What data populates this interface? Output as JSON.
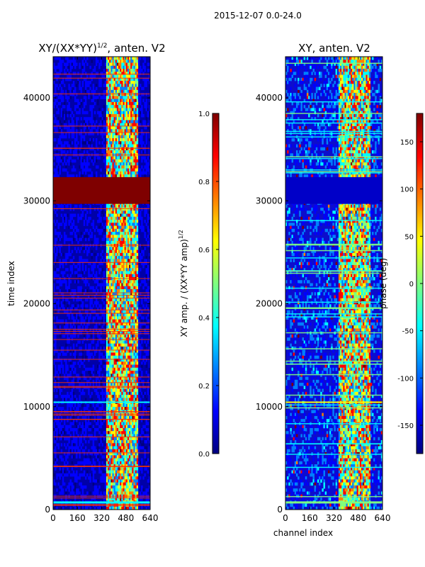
{
  "suptitle": "2015-12-07 0.0-24.0",
  "colors": {
    "jet": [
      "#00007f",
      "#0000ff",
      "#007fff",
      "#00ffff",
      "#7fff7f",
      "#ffff00",
      "#ff7f00",
      "#ff0000",
      "#7f0000"
    ],
    "axis": "#000000"
  },
  "chart_data": [
    {
      "type": "heatmap",
      "title_main": "XY/(XX*YY)",
      "title_sup": "1/2",
      "title_tail": ", anten. V2",
      "xlabel": "",
      "ylabel": "time index",
      "xlim": [
        0,
        640
      ],
      "ylim": [
        0,
        44000
      ],
      "xticks": [
        "0",
        "160",
        "320",
        "480",
        "640"
      ],
      "yticks": [
        "0",
        "10000",
        "20000",
        "30000",
        "40000"
      ],
      "saturated_band": [
        29700,
        32300
      ],
      "colorbar": {
        "label_main": "XY amp. / (XX*YY amp)",
        "label_sup": "1/2",
        "range": [
          0.0,
          1.0
        ],
        "ticks": [
          "0.0",
          "0.2",
          "0.4",
          "0.6",
          "0.8",
          "1.0"
        ]
      }
    },
    {
      "type": "heatmap",
      "title": "XY, anten. V2",
      "xlabel": "channel index",
      "ylabel": "",
      "xlim": [
        0,
        640
      ],
      "ylim": [
        0,
        44000
      ],
      "xticks": [
        "0",
        "160",
        "320",
        "480",
        "640"
      ],
      "yticks": [
        "0",
        "10000",
        "20000",
        "30000",
        "40000"
      ],
      "saturated_band": [
        29700,
        32300
      ],
      "colorbar": {
        "label": "phase (deg)",
        "range": [
          -180,
          180
        ],
        "ticks": [
          "-150",
          "-100",
          "-50",
          "0",
          "50",
          "100",
          "150"
        ]
      }
    }
  ]
}
